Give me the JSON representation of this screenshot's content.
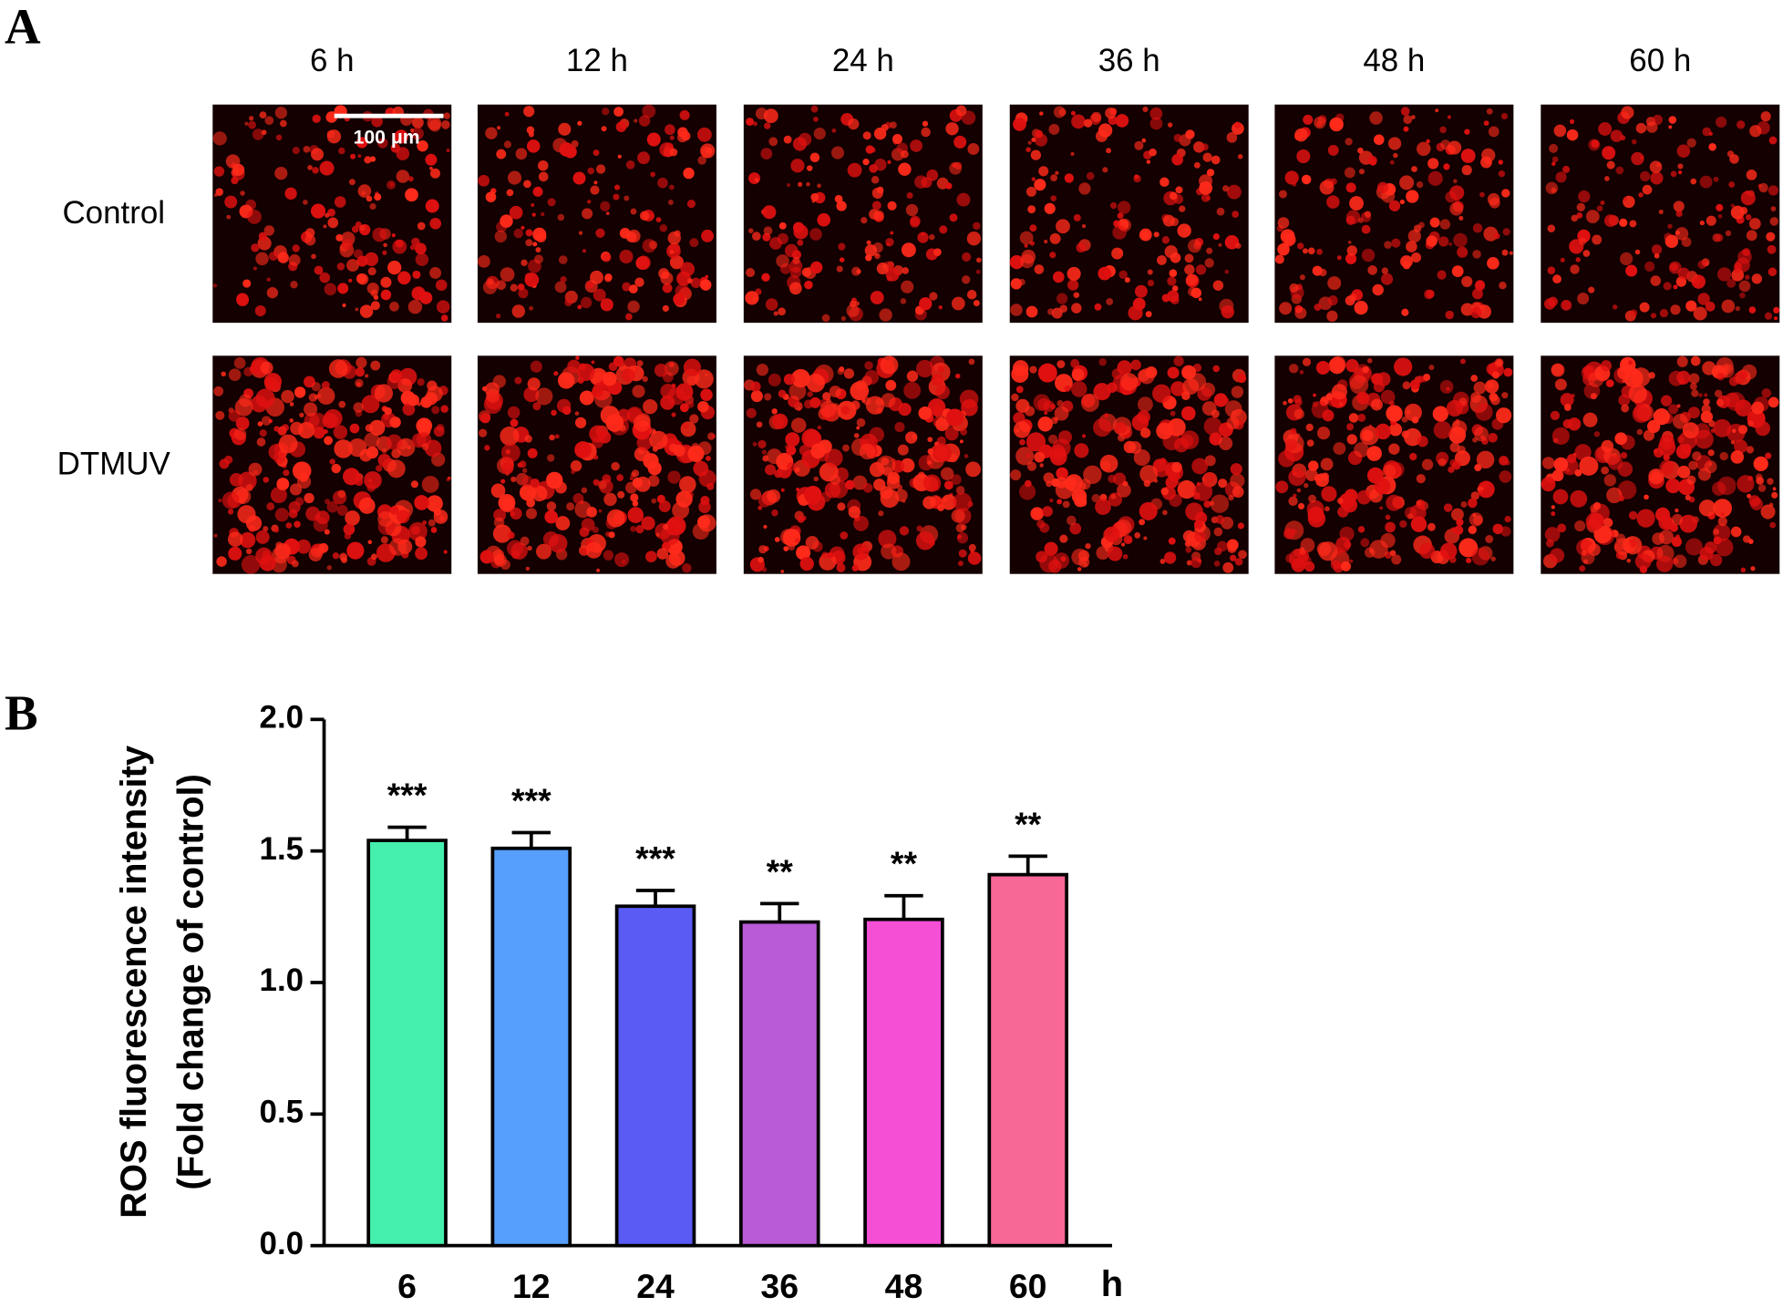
{
  "panel_a": {
    "label": "A",
    "columns": [
      "6 h",
      "12 h",
      "24 h",
      "36 h",
      "48 h",
      "60 h"
    ],
    "rows": [
      "Control",
      "DTMUV"
    ],
    "scale_bar": "100 μm"
  },
  "chart_data": {
    "type": "bar",
    "panel_label": "B",
    "categories": [
      "6",
      "12",
      "24",
      "36",
      "48",
      "60"
    ],
    "x_unit": "h",
    "values": [
      1.54,
      1.51,
      1.29,
      1.23,
      1.24,
      1.41
    ],
    "errors": [
      0.05,
      0.06,
      0.06,
      0.07,
      0.09,
      0.07
    ],
    "annotations": [
      "***",
      "***",
      "***",
      "**",
      "**",
      "**"
    ],
    "colors": [
      "#45f0ae",
      "#569ffc",
      "#5a5af5",
      "#b95bd6",
      "#f54fd6",
      "#f76896"
    ],
    "ylabel": [
      "ROS fluorescence intensity",
      "(Fold change of control)"
    ],
    "ylim": [
      0,
      2
    ],
    "yticks": [
      {
        "value": 0,
        "label": "0.0"
      },
      {
        "value": 0.5,
        "label": "0.5"
      },
      {
        "value": 1,
        "label": "1.0"
      },
      {
        "value": 1.5,
        "label": "1.5"
      },
      {
        "value": 2,
        "label": "2.0"
      }
    ]
  }
}
